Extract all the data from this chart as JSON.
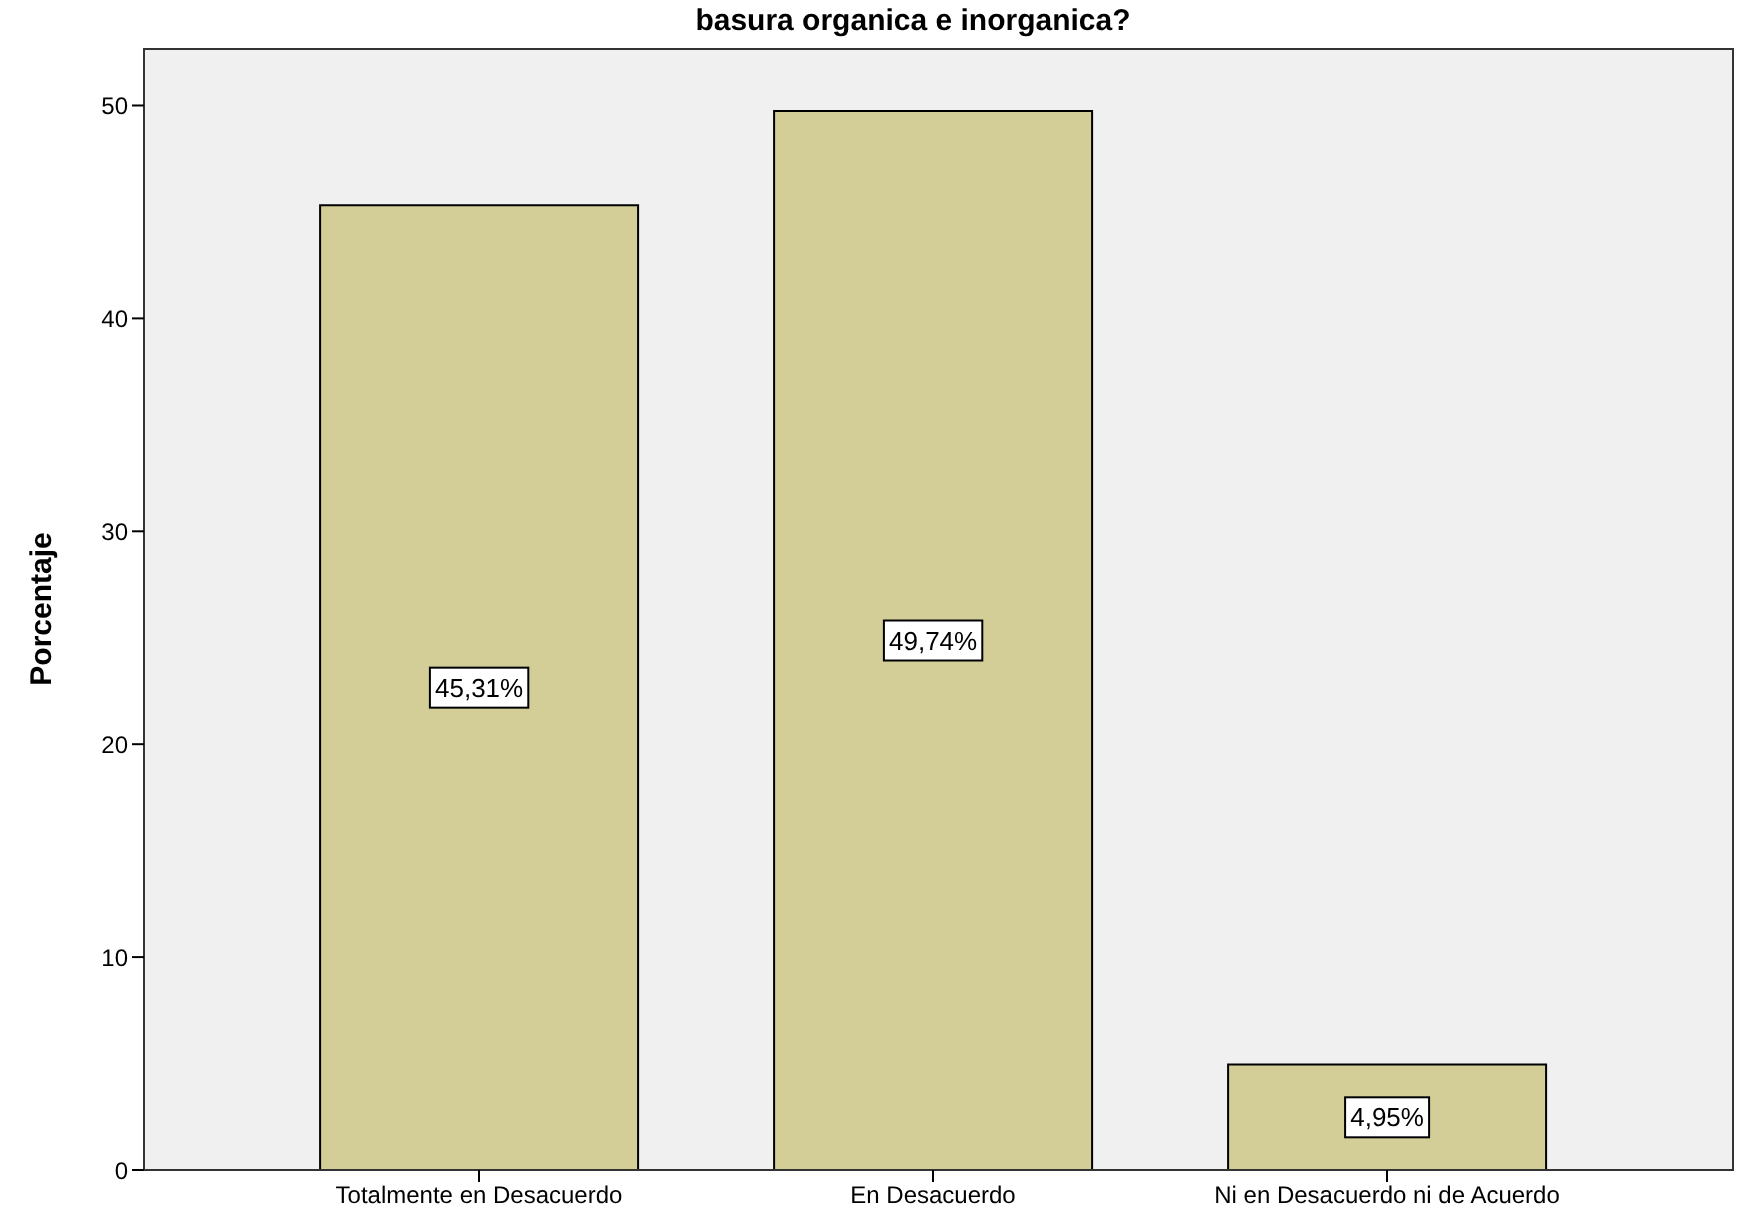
{
  "chart_data": {
    "type": "bar",
    "title": "basura organica e inorganica?",
    "ylabel": "Porcentaje",
    "categories": [
      "Totalmente en Desacuerdo",
      "En Desacuerdo",
      "Ni en Desacuerdo ni de Acuerdo"
    ],
    "values": [
      45.31,
      49.74,
      4.95
    ],
    "value_labels": [
      "45,31%",
      "49,74%",
      "4,95%"
    ],
    "color": "#d3ce97",
    "ylim": [
      0,
      52.7
    ],
    "yticks": [
      0,
      10,
      20,
      30,
      40,
      50
    ]
  }
}
